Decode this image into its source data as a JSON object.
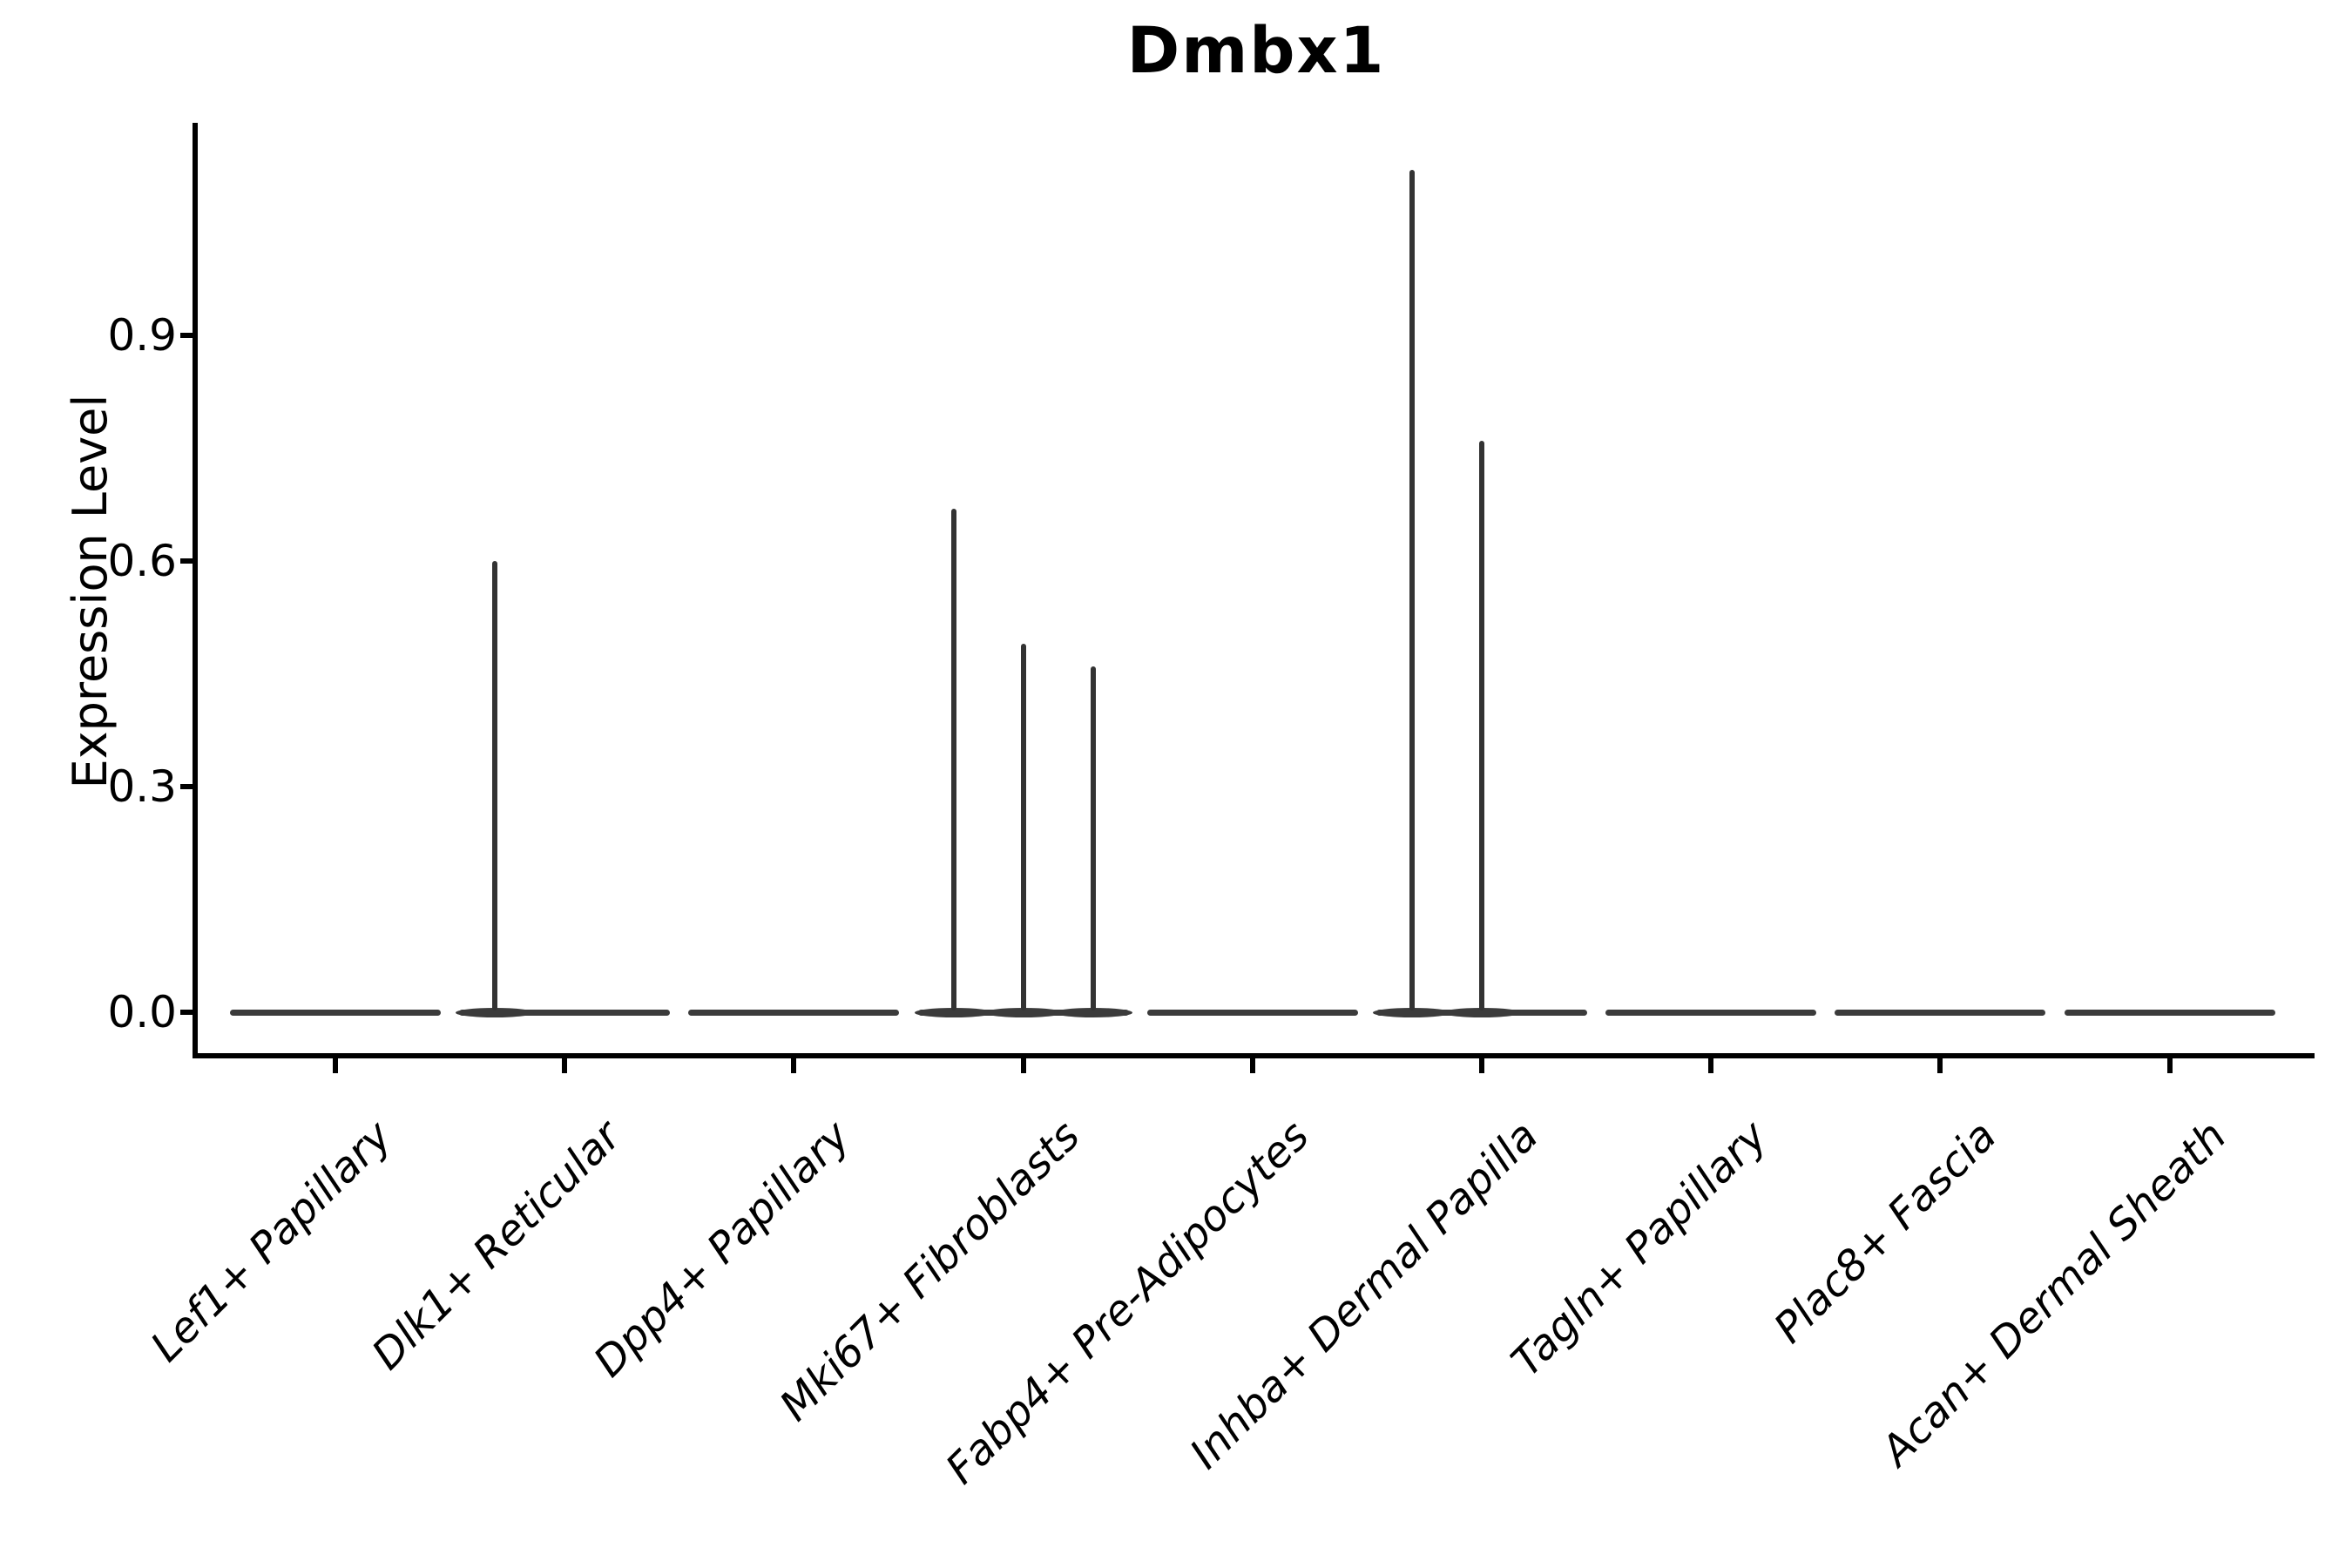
{
  "figure": {
    "title": "Dmbx1"
  },
  "y_axis": {
    "label": "Expression Level",
    "tick_labels": [
      "0.0",
      "0.3",
      "0.6",
      "0.9"
    ]
  },
  "x_axis": {
    "tick_labels": [
      "Lef1+ Papillary",
      "Dlk1+ Reticular",
      "Dpp4+ Papillary",
      "Mki67+ Fibroblasts",
      "Fabp4+ Pre-Adipocytes",
      "Inhba+ Dermal Papilla",
      "Tagln+ Papillary",
      "Plac8+ Fascia",
      "Acan+ Dermal Sheath"
    ]
  },
  "chart_data": {
    "type": "violin",
    "title": "Dmbx1",
    "xlabel": "",
    "ylabel": "Expression Level",
    "ylim": [
      0,
      1.18
    ],
    "yticks": [
      0.0,
      0.3,
      0.6,
      0.9
    ],
    "grid": false,
    "legend": null,
    "categories": [
      "Lef1+ Papillary",
      "Dlk1+ Reticular",
      "Dpp4+ Papillary",
      "Mki67+ Fibroblasts",
      "Fabp4+ Pre-Adipocytes",
      "Inhba+ Dermal Papilla",
      "Tagln+ Papillary",
      "Plac8+ Fascia",
      "Acan+ Dermal Sheath"
    ],
    "violins": [
      {
        "category": "Lef1+ Papillary",
        "density_collapsed_at_zero": true,
        "spikes": []
      },
      {
        "category": "Dlk1+ Reticular",
        "density_collapsed_at_zero": true,
        "spikes": [
          {
            "slot": "left",
            "value": 0.6
          }
        ]
      },
      {
        "category": "Dpp4+ Papillary",
        "density_collapsed_at_zero": true,
        "spikes": []
      },
      {
        "category": "Mki67+ Fibroblasts",
        "density_collapsed_at_zero": true,
        "spikes": [
          {
            "slot": "left",
            "value": 0.67
          },
          {
            "slot": "center",
            "value": 0.49
          },
          {
            "slot": "right",
            "value": 0.46
          }
        ]
      },
      {
        "category": "Fabp4+ Pre-Adipocytes",
        "density_collapsed_at_zero": true,
        "spikes": []
      },
      {
        "category": "Inhba+ Dermal Papilla",
        "density_collapsed_at_zero": true,
        "spikes": [
          {
            "slot": "left",
            "value": 1.12
          },
          {
            "slot": "center",
            "value": 0.76
          }
        ]
      },
      {
        "category": "Tagln+ Papillary",
        "density_collapsed_at_zero": true,
        "spikes": []
      },
      {
        "category": "Plac8+ Fascia",
        "density_collapsed_at_zero": true,
        "spikes": []
      },
      {
        "category": "Acan+ Dermal Sheath",
        "density_collapsed_at_zero": true,
        "spikes": []
      }
    ],
    "colors": {
      "violin_line": "#3b3b3b",
      "spike": "#333333",
      "axis": "#000000",
      "text": "#000000",
      "background": "#ffffff"
    }
  }
}
